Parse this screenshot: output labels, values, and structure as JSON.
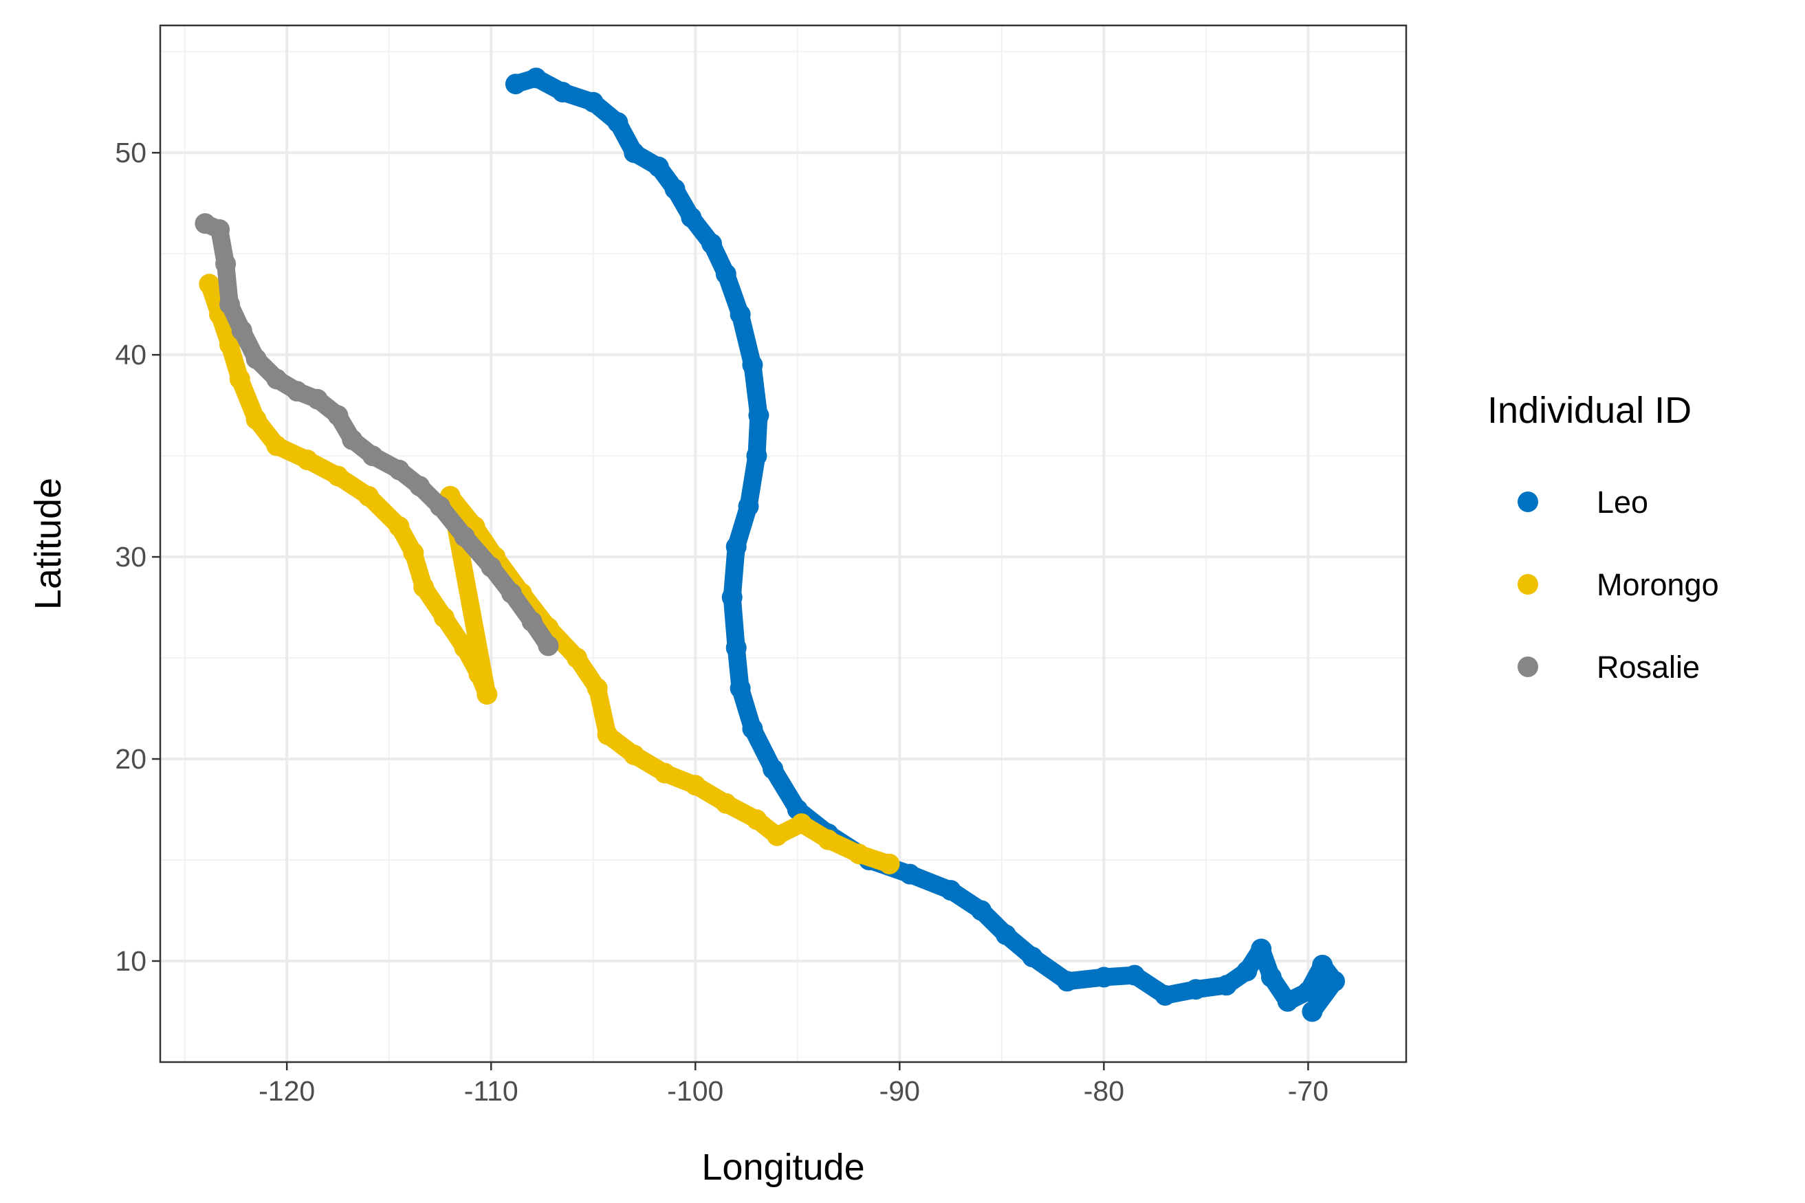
{
  "chart_data": {
    "type": "scatter",
    "xlabel": "Longitude",
    "ylabel": "Latitude",
    "xlim": [
      -126.2,
      -65.2
    ],
    "ylim": [
      5.0,
      56.3
    ],
    "x_ticks": [
      -120,
      -110,
      -100,
      -90,
      -80,
      -70
    ],
    "y_ticks": [
      10,
      20,
      30,
      40,
      50
    ],
    "grid": true,
    "legend": {
      "title": "Individual ID",
      "position": "right"
    },
    "series": [
      {
        "name": "Leo",
        "color": "#0072C2",
        "points": [
          [
            -108.8,
            53.4
          ],
          [
            -107.8,
            53.7
          ],
          [
            -106.5,
            53.0
          ],
          [
            -105.0,
            52.5
          ],
          [
            -103.8,
            51.5
          ],
          [
            -103.0,
            50.0
          ],
          [
            -101.8,
            49.3
          ],
          [
            -101.0,
            48.2
          ],
          [
            -100.2,
            46.8
          ],
          [
            -99.2,
            45.5
          ],
          [
            -98.5,
            44.0
          ],
          [
            -97.8,
            42.0
          ],
          [
            -97.2,
            39.5
          ],
          [
            -96.9,
            37.0
          ],
          [
            -97.0,
            35.0
          ],
          [
            -97.4,
            32.5
          ],
          [
            -98.0,
            30.5
          ],
          [
            -98.2,
            28.0
          ],
          [
            -98.0,
            25.5
          ],
          [
            -97.8,
            23.5
          ],
          [
            -97.2,
            21.5
          ],
          [
            -96.2,
            19.5
          ],
          [
            -95.0,
            17.5
          ],
          [
            -93.5,
            16.3
          ],
          [
            -91.5,
            15.0
          ],
          [
            -89.5,
            14.3
          ],
          [
            -87.5,
            13.5
          ],
          [
            -86.0,
            12.5
          ],
          [
            -84.8,
            11.3
          ],
          [
            -83.5,
            10.2
          ],
          [
            -81.8,
            9.0
          ],
          [
            -80.0,
            9.2
          ],
          [
            -78.5,
            9.3
          ],
          [
            -77.0,
            8.3
          ],
          [
            -75.5,
            8.6
          ],
          [
            -74.0,
            8.8
          ],
          [
            -73.0,
            9.5
          ],
          [
            -72.3,
            10.6
          ],
          [
            -71.8,
            9.2
          ],
          [
            -71.0,
            8.0
          ],
          [
            -70.0,
            8.5
          ],
          [
            -69.3,
            9.8
          ],
          [
            -68.7,
            9.0
          ],
          [
            -69.8,
            7.5
          ]
        ]
      },
      {
        "name": "Morongo",
        "color": "#EFC000",
        "points": [
          [
            -123.8,
            43.5
          ],
          [
            -123.3,
            42.0
          ],
          [
            -122.8,
            40.5
          ],
          [
            -122.3,
            38.8
          ],
          [
            -121.5,
            36.8
          ],
          [
            -120.5,
            35.5
          ],
          [
            -119.0,
            34.8
          ],
          [
            -117.5,
            34.0
          ],
          [
            -116.0,
            33.0
          ],
          [
            -114.5,
            31.5
          ],
          [
            -113.8,
            30.2
          ],
          [
            -113.3,
            28.5
          ],
          [
            -112.3,
            27.0
          ],
          [
            -111.3,
            25.5
          ],
          [
            -110.6,
            24.2
          ],
          [
            -110.2,
            23.2
          ],
          [
            -112.0,
            33.0
          ],
          [
            -110.8,
            31.5
          ],
          [
            -109.8,
            30.0
          ],
          [
            -108.5,
            28.2
          ],
          [
            -107.2,
            26.5
          ],
          [
            -105.8,
            25.0
          ],
          [
            -104.8,
            23.5
          ],
          [
            -104.3,
            21.2
          ],
          [
            -103.0,
            20.2
          ],
          [
            -101.5,
            19.3
          ],
          [
            -100.0,
            18.7
          ],
          [
            -98.5,
            17.8
          ],
          [
            -97.0,
            17.0
          ],
          [
            -96.0,
            16.2
          ],
          [
            -94.8,
            16.8
          ],
          [
            -93.5,
            16.0
          ],
          [
            -92.0,
            15.3
          ],
          [
            -90.5,
            14.8
          ]
        ]
      },
      {
        "name": "Rosalie",
        "color": "#868686",
        "points": [
          [
            -124.0,
            46.5
          ],
          [
            -123.3,
            46.2
          ],
          [
            -123.0,
            44.5
          ],
          [
            -122.8,
            42.5
          ],
          [
            -122.2,
            41.2
          ],
          [
            -121.5,
            39.8
          ],
          [
            -120.5,
            38.8
          ],
          [
            -119.5,
            38.2
          ],
          [
            -118.5,
            37.8
          ],
          [
            -117.5,
            37.0
          ],
          [
            -116.8,
            35.8
          ],
          [
            -115.8,
            35.0
          ],
          [
            -114.5,
            34.3
          ],
          [
            -113.5,
            33.5
          ],
          [
            -112.5,
            32.5
          ],
          [
            -111.3,
            31.0
          ],
          [
            -110.0,
            29.5
          ],
          [
            -109.0,
            28.2
          ],
          [
            -108.0,
            26.8
          ],
          [
            -107.2,
            25.6
          ]
        ]
      }
    ]
  }
}
